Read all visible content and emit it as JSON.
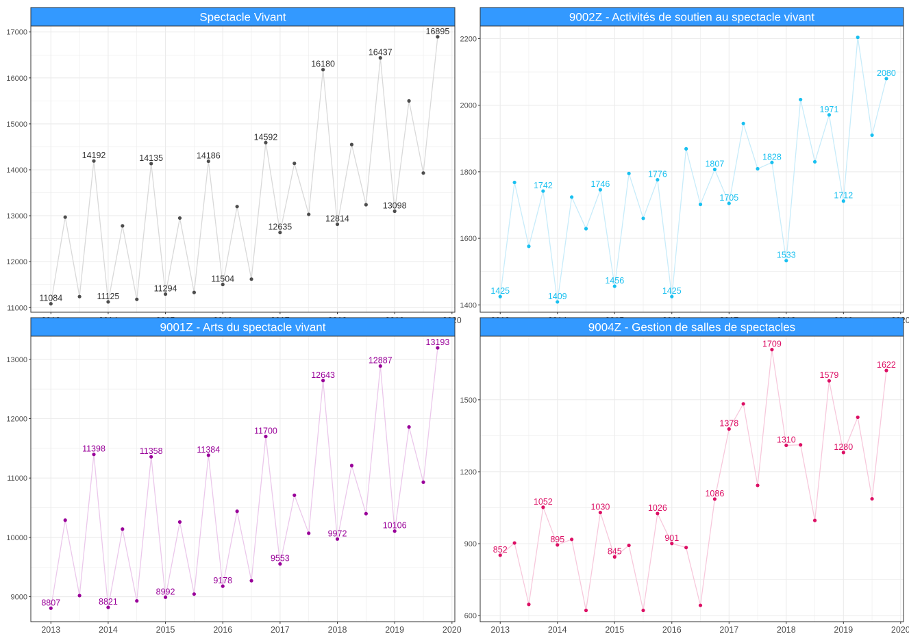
{
  "chart_data": [
    {
      "type": "line",
      "panel_title": "Spectacle Vivant",
      "x": [
        2013.0,
        2013.25,
        2013.5,
        2013.75,
        2014.0,
        2014.25,
        2014.5,
        2014.75,
        2015.0,
        2015.25,
        2015.5,
        2015.75,
        2016.0,
        2016.25,
        2016.5,
        2016.75,
        2017.0,
        2017.25,
        2017.5,
        2017.75,
        2018.0,
        2018.25,
        2018.5,
        2018.75,
        2019.0,
        2019.25,
        2019.5,
        2019.75
      ],
      "values": [
        11084,
        12970,
        11240,
        14192,
        11125,
        12780,
        11180,
        14135,
        11294,
        12950,
        11330,
        14186,
        11504,
        13200,
        11620,
        14592,
        12635,
        14140,
        13030,
        16180,
        12814,
        14550,
        13240,
        16437,
        13098,
        15500,
        13930,
        16895
      ],
      "labels": [
        "11084",
        "",
        "",
        "14192",
        "11125",
        "",
        "",
        "14135",
        "11294",
        "",
        "",
        "14186",
        "11504",
        "",
        "",
        "14592",
        "12635",
        "",
        "",
        "16180",
        "12814",
        "",
        "",
        "16437",
        "13098",
        "",
        "",
        "16895"
      ],
      "ylim": [
        10900,
        17130
      ],
      "yticks": [
        11000,
        12000,
        13000,
        14000,
        15000,
        16000,
        17000
      ],
      "ytick_labels": [
        "11000",
        "12000",
        "13000",
        "14000",
        "15000",
        "16000",
        "17000"
      ],
      "xlim": [
        2012.65,
        2020.05
      ],
      "xticks": [
        2013,
        2014,
        2015,
        2016,
        2017,
        2018,
        2019,
        2020
      ],
      "xtick_labels": [
        "2013",
        "2014",
        "2015",
        "2016",
        "2017",
        "2018",
        "2019",
        "2020"
      ],
      "line_color": "#d9d9d9",
      "point_color": "#4d4d4d",
      "label_color": "#333333"
    },
    {
      "type": "line",
      "panel_title": "9002Z - Activités de soutien au spectacle vivant",
      "x": [
        2013.0,
        2013.25,
        2013.5,
        2013.75,
        2014.0,
        2014.25,
        2014.5,
        2014.75,
        2015.0,
        2015.25,
        2015.5,
        2015.75,
        2016.0,
        2016.25,
        2016.5,
        2016.75,
        2017.0,
        2017.25,
        2017.5,
        2017.75,
        2018.0,
        2018.25,
        2018.5,
        2018.75,
        2019.0,
        2019.25,
        2019.5,
        2019.75
      ],
      "values": [
        1425,
        1768,
        1576,
        1742,
        1409,
        1724,
        1629,
        1746,
        1456,
        1795,
        1660,
        1776,
        1425,
        1869,
        1702,
        1807,
        1705,
        1945,
        1809,
        1828,
        1533,
        2017,
        1830,
        1971,
        1712,
        2204,
        1910,
        2080
      ],
      "labels": [
        "1425",
        "",
        "",
        "1742",
        "1409",
        "",
        "",
        "1746",
        "1456",
        "",
        "",
        "1776",
        "1425",
        "",
        "",
        "1807",
        "1705",
        "",
        "",
        "1828",
        "1533",
        "",
        "",
        "1971",
        "1712",
        "",
        "",
        "2080"
      ],
      "ylim": [
        1378,
        2238
      ],
      "yticks": [
        1400,
        1600,
        1800,
        2000,
        2200
      ],
      "ytick_labels": [
        "1400",
        "1600",
        "1800",
        "2000",
        "2200"
      ],
      "xlim": [
        2012.65,
        2020.05
      ],
      "xticks": [
        2013,
        2014,
        2015,
        2016,
        2017,
        2018,
        2019,
        2020
      ],
      "xtick_labels": [
        "2013",
        "2014",
        "2015",
        "2016",
        "2017",
        "2018",
        "2019",
        "2020"
      ],
      "line_color": "#c8ecfa",
      "point_color": "#19c0f0",
      "label_color": "#19c0f0"
    },
    {
      "type": "line",
      "panel_title": "9001Z - Arts du spectacle vivant",
      "x": [
        2013.0,
        2013.25,
        2013.5,
        2013.75,
        2014.0,
        2014.25,
        2014.5,
        2014.75,
        2015.0,
        2015.25,
        2015.5,
        2015.75,
        2016.0,
        2016.25,
        2016.5,
        2016.75,
        2017.0,
        2017.25,
        2017.5,
        2017.75,
        2018.0,
        2018.25,
        2018.5,
        2018.75,
        2019.0,
        2019.25,
        2019.5,
        2019.75
      ],
      "values": [
        8807,
        10290,
        9020,
        11398,
        8821,
        10140,
        8930,
        11358,
        8992,
        10260,
        9045,
        11384,
        9178,
        10440,
        9270,
        11700,
        9553,
        10710,
        10070,
        12643,
        9972,
        11210,
        10400,
        12887,
        10106,
        11860,
        10930,
        13193
      ],
      "labels": [
        "8807",
        "",
        "",
        "11398",
        "8821",
        "",
        "",
        "11358",
        "8992",
        "",
        "",
        "11384",
        "9178",
        "",
        "",
        "11700",
        "9553",
        "",
        "",
        "12643",
        "9972",
        "",
        "",
        "12887",
        "10106",
        "",
        "",
        "13193"
      ],
      "ylim": [
        8580,
        13390
      ],
      "yticks": [
        9000,
        10000,
        11000,
        12000,
        13000
      ],
      "ytick_labels": [
        "9000",
        "10000",
        "11000",
        "12000",
        "13000"
      ],
      "xlim": [
        2012.65,
        2020.05
      ],
      "xticks": [
        2013,
        2014,
        2015,
        2016,
        2017,
        2018,
        2019,
        2020
      ],
      "xtick_labels": [
        "2013",
        "2014",
        "2015",
        "2016",
        "2017",
        "2018",
        "2019",
        "2020"
      ],
      "line_color": "#ebc8eb",
      "point_color": "#990099",
      "label_color": "#990099"
    },
    {
      "type": "line",
      "panel_title": "9004Z - Gestion de salles de spectacles",
      "x": [
        2013.0,
        2013.25,
        2013.5,
        2013.75,
        2014.0,
        2014.25,
        2014.5,
        2014.75,
        2015.0,
        2015.25,
        2015.5,
        2015.75,
        2016.0,
        2016.25,
        2016.5,
        2016.75,
        2017.0,
        2017.25,
        2017.5,
        2017.75,
        2018.0,
        2018.25,
        2018.5,
        2018.75,
        2019.0,
        2019.25,
        2019.5,
        2019.75
      ],
      "values": [
        852,
        903,
        647,
        1052,
        895,
        918,
        622,
        1030,
        845,
        893,
        622,
        1026,
        901,
        884,
        643,
        1086,
        1378,
        1483,
        1143,
        1709,
        1310,
        1312,
        997,
        1579,
        1280,
        1427,
        1087,
        1622
      ],
      "labels": [
        "852",
        "",
        "",
        "1052",
        "895",
        "",
        "",
        "1030",
        "845",
        "",
        "",
        "1026",
        "901",
        "",
        "",
        "1086",
        "1378",
        "",
        "",
        "1709",
        "1310",
        "",
        "",
        "1579",
        "1280",
        "",
        "",
        "1622"
      ],
      "ylim": [
        575,
        1765
      ],
      "yticks": [
        600,
        900,
        1200,
        1500
      ],
      "ytick_labels": [
        "600",
        "900",
        "1200",
        "1500"
      ],
      "xlim": [
        2012.65,
        2020.05
      ],
      "xticks": [
        2013,
        2014,
        2015,
        2016,
        2017,
        2018,
        2019,
        2020
      ],
      "xtick_labels": [
        "2013",
        "2014",
        "2015",
        "2016",
        "2017",
        "2018",
        "2019",
        "2020"
      ],
      "line_color": "#f7c9dc",
      "point_color": "#dc0f64",
      "label_color": "#dc0f64"
    }
  ],
  "style": {
    "strip_color": "#3399ff",
    "grid_color": "#ebebeb",
    "border_color": "#333333"
  }
}
